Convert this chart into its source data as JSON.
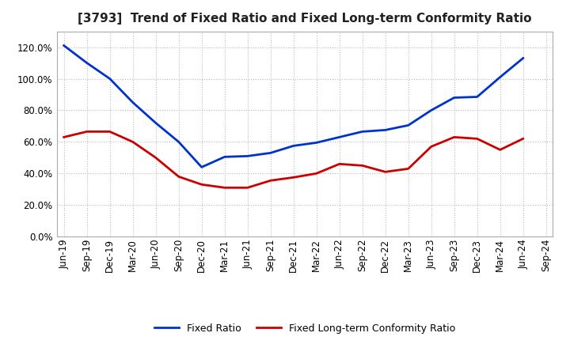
{
  "title": "[3793]  Trend of Fixed Ratio and Fixed Long-term Conformity Ratio",
  "x_labels": [
    "Jun-19",
    "Sep-19",
    "Dec-19",
    "Mar-20",
    "Jun-20",
    "Sep-20",
    "Dec-20",
    "Mar-21",
    "Jun-21",
    "Sep-21",
    "Dec-21",
    "Mar-22",
    "Jun-22",
    "Sep-22",
    "Dec-22",
    "Mar-23",
    "Jun-23",
    "Sep-23",
    "Dec-23",
    "Mar-24",
    "Jun-24",
    "Sep-24"
  ],
  "fixed_ratio": [
    121.0,
    110.0,
    100.0,
    85.0,
    72.0,
    60.0,
    44.0,
    50.5,
    51.0,
    53.0,
    57.5,
    59.5,
    63.0,
    66.5,
    67.5,
    70.5,
    80.0,
    88.0,
    88.5,
    101.0,
    113.0,
    null
  ],
  "fixed_lt_ratio": [
    63.0,
    66.5,
    66.5,
    60.0,
    50.0,
    38.0,
    33.0,
    31.0,
    31.0,
    35.5,
    37.5,
    40.0,
    46.0,
    45.0,
    41.0,
    43.0,
    57.0,
    63.0,
    62.0,
    55.0,
    62.0,
    null
  ],
  "fixed_ratio_color": "#0033CC",
  "fixed_lt_ratio_color": "#CC0000",
  "ylim": [
    0,
    130
  ],
  "yticks": [
    0,
    20,
    40,
    60,
    80,
    100,
    120
  ],
  "background_color": "#FFFFFF",
  "grid_color": "#BBBBBB",
  "legend_fixed_ratio": "Fixed Ratio",
  "legend_fixed_lt_ratio": "Fixed Long-term Conformity Ratio",
  "title_fontsize": 11,
  "tick_fontsize": 8.5
}
